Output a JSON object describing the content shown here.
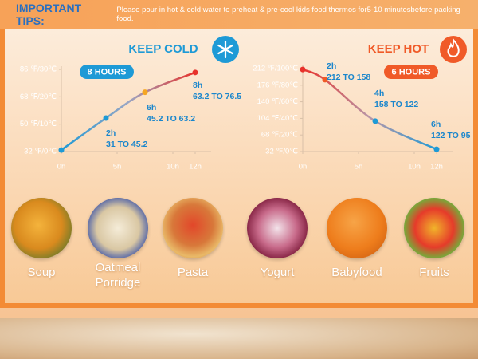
{
  "tips": {
    "label": "IMPORTANT TIPS:",
    "text": "Please pour in hot & cold water to preheat & pre-cool kids food thermos for5-10 minutesbefore packing food."
  },
  "chart_data": [
    {
      "type": "line",
      "title": "KEEP COLD",
      "badge": "8 HOURS",
      "x": [
        0,
        4,
        7.5,
        12
      ],
      "series": [
        {
          "color": "#1e90d6",
          "point_colors": [
            "#1e9ad6",
            "#1e9ad6",
            "#f5a623",
            "#e8322b"
          ],
          "values": [
            33,
            54,
            71,
            84
          ]
        }
      ],
      "annotations": [
        {
          "time": "2h",
          "range": "31 TO 45.2"
        },
        {
          "time": "6h",
          "range": "45.2 TO 63.2"
        },
        {
          "time": "8h",
          "range": "63.2 TO 76.5"
        }
      ],
      "xlim": [
        0,
        13
      ],
      "ylim": [
        32,
        86
      ],
      "xticks": [
        {
          "value": 0,
          "label": "0h"
        },
        {
          "value": 5,
          "label": "5h"
        },
        {
          "value": 10,
          "label": "10h"
        },
        {
          "value": 12,
          "label": "12h"
        }
      ],
      "yticks": [
        {
          "value": 32,
          "label": "32 ℉/0℃"
        },
        {
          "value": 50,
          "label": "50 ℉/10℃"
        },
        {
          "value": 68,
          "label": "68 ℉/20℃"
        },
        {
          "value": 86,
          "label": "86 ℉/30℃"
        }
      ]
    },
    {
      "type": "line",
      "title": "KEEP HOT",
      "badge": "6 HOURS",
      "x": [
        0,
        2,
        6.5,
        12
      ],
      "series": [
        {
          "color": "#e8322b",
          "point_colors": [
            "#e8322b",
            "#f05a28",
            "#1e9ad6",
            "#1e9ad6"
          ],
          "values": [
            210,
            188,
            98,
            37
          ]
        }
      ],
      "annotations": [
        {
          "time": "2h",
          "range": "212 TO 158"
        },
        {
          "time": "4h",
          "range": "158 TO 122"
        },
        {
          "time": "6h",
          "range": "122 TO 95"
        }
      ],
      "xlim": [
        0,
        13
      ],
      "ylim": [
        32,
        212
      ],
      "xticks": [
        {
          "value": 0,
          "label": "0h"
        },
        {
          "value": 5,
          "label": "5h"
        },
        {
          "value": 10,
          "label": "10h"
        },
        {
          "value": 12,
          "label": "12h"
        }
      ],
      "yticks": [
        {
          "value": 32,
          "label": "32 ℉/0℃"
        },
        {
          "value": 68,
          "label": "68 ℉/20℃"
        },
        {
          "value": 104,
          "label": "104 ℉/40℃"
        },
        {
          "value": 140,
          "label": "140 ℉/60℃"
        },
        {
          "value": 176,
          "label": "176 ℉/80℃"
        },
        {
          "value": 212,
          "label": "212 ℉/100℃"
        }
      ]
    }
  ],
  "foods": [
    "Soup",
    "Oatmeal Porridge",
    "Pasta",
    "Yogurt",
    "Babyfood",
    "Fruits"
  ]
}
